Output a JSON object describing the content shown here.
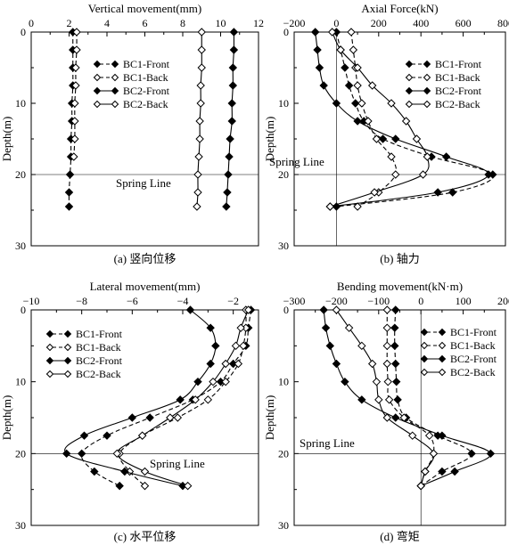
{
  "chart_data": [
    {
      "id": "a",
      "type": "line",
      "orientation": "depth-profile",
      "title": "Vertical movement(mm)",
      "caption": "(a) 竖向位移",
      "xlabel": "Vertical movement(mm)",
      "ylabel": "Depth(m)",
      "xlim": [
        0,
        12
      ],
      "ylim": [
        0,
        30
      ],
      "y_inverted": true,
      "x_axis_position": "top",
      "xticks": [
        "0",
        "2",
        "4",
        "6",
        "8",
        "10",
        "12"
      ],
      "yticks": [
        "0",
        "10",
        "20",
        "30"
      ],
      "legend_position": "upper-right",
      "reference_line": {
        "label": "Spring Line",
        "depth": 20
      },
      "series": [
        {
          "name": "BC1-Front",
          "marker": "filled-diamond",
          "line": "dashed",
          "points": [
            [
              2.2,
              0
            ],
            [
              2.2,
              2.5
            ],
            [
              2.2,
              5
            ],
            [
              2.2,
              7.5
            ],
            [
              2.15,
              10
            ],
            [
              2.15,
              12.5
            ],
            [
              2.1,
              15
            ],
            [
              2.1,
              17.5
            ],
            [
              2.05,
              20
            ],
            [
              2.0,
              22.5
            ],
            [
              2.0,
              24.5
            ]
          ]
        },
        {
          "name": "BC1-Back",
          "marker": "open-diamond",
          "line": "dashed",
          "points": [
            [
              2.4,
              0
            ],
            [
              2.4,
              2.5
            ],
            [
              2.35,
              5
            ],
            [
              2.35,
              7.5
            ],
            [
              2.3,
              10
            ],
            [
              2.3,
              12.5
            ],
            [
              2.3,
              15
            ],
            [
              2.25,
              17.5
            ]
          ]
        },
        {
          "name": "BC2-Front",
          "marker": "filled-diamond",
          "line": "solid",
          "points": [
            [
              10.7,
              0
            ],
            [
              10.7,
              2.5
            ],
            [
              10.65,
              5
            ],
            [
              10.65,
              7.5
            ],
            [
              10.6,
              10
            ],
            [
              10.6,
              12.5
            ],
            [
              10.5,
              15
            ],
            [
              10.45,
              17.5
            ],
            [
              10.4,
              20
            ],
            [
              10.35,
              22.5
            ],
            [
              10.3,
              24.5
            ]
          ]
        },
        {
          "name": "BC2-Back",
          "marker": "open-diamond",
          "line": "solid",
          "points": [
            [
              9.0,
              0
            ],
            [
              9.0,
              2.5
            ],
            [
              9.0,
              5
            ],
            [
              8.95,
              7.5
            ],
            [
              8.95,
              10
            ],
            [
              8.9,
              12.5
            ],
            [
              8.9,
              15
            ],
            [
              8.85,
              17.5
            ],
            [
              8.8,
              20
            ],
            [
              8.8,
              22.5
            ],
            [
              8.75,
              24.5
            ]
          ]
        }
      ]
    },
    {
      "id": "b",
      "type": "line",
      "orientation": "depth-profile",
      "title": "Axial Force(kN)",
      "caption": "(b) 轴力",
      "xlabel": "Axial Force(kN)",
      "ylabel": "Depth(m)",
      "xlim": [
        -200,
        800
      ],
      "ylim": [
        0,
        30
      ],
      "y_inverted": true,
      "x_axis_position": "top",
      "xticks": [
        "−200",
        "0",
        "200",
        "400",
        "600",
        "800"
      ],
      "yticks": [
        "0",
        "10",
        "20",
        "30"
      ],
      "legend_position": "upper-right",
      "reference_line": {
        "label": "Spring Line",
        "depth": 20
      },
      "zero_line": 0,
      "series": [
        {
          "name": "BC1-Front",
          "marker": "filled-diamond",
          "line": "dashed",
          "points": [
            [
              0,
              0
            ],
            [
              20,
              2.5
            ],
            [
              40,
              5
            ],
            [
              60,
              7.5
            ],
            [
              90,
              10
            ],
            [
              130,
              12.5
            ],
            [
              220,
              15
            ],
            [
              450,
              17.5
            ],
            [
              740,
              20
            ],
            [
              550,
              22.5
            ],
            [
              0,
              24.5
            ]
          ]
        },
        {
          "name": "BC1-Back",
          "marker": "open-diamond",
          "line": "dashed",
          "points": [
            [
              70,
              0
            ],
            [
              80,
              2.5
            ],
            [
              90,
              5
            ],
            [
              100,
              7.5
            ],
            [
              120,
              10
            ],
            [
              150,
              12.5
            ],
            [
              190,
              15
            ],
            [
              260,
              17.5
            ],
            [
              280,
              20
            ],
            [
              200,
              22.5
            ],
            [
              100,
              24.5
            ]
          ]
        },
        {
          "name": "BC2-Front",
          "marker": "filled-diamond",
          "line": "solid",
          "points": [
            [
              -100,
              0
            ],
            [
              -90,
              2.5
            ],
            [
              -80,
              5
            ],
            [
              -60,
              7.5
            ],
            [
              0,
              10
            ],
            [
              100,
              12.5
            ],
            [
              280,
              15
            ],
            [
              520,
              17.5
            ],
            [
              720,
              20
            ],
            [
              480,
              22.5
            ],
            [
              -30,
              24.5
            ]
          ]
        },
        {
          "name": "BC2-Back",
          "marker": "open-diamond",
          "line": "solid",
          "points": [
            [
              -20,
              0
            ],
            [
              20,
              2.5
            ],
            [
              100,
              5
            ],
            [
              170,
              7.5
            ],
            [
              260,
              10
            ],
            [
              330,
              12.5
            ],
            [
              380,
              15
            ],
            [
              430,
              17.5
            ],
            [
              410,
              20
            ],
            [
              180,
              22.5
            ],
            [
              -30,
              24.5
            ]
          ]
        }
      ]
    },
    {
      "id": "c",
      "type": "line",
      "orientation": "depth-profile",
      "title": "Lateral movement(mm)",
      "caption": "(c) 水平位移",
      "xlabel": "Lateral movement(mm)",
      "ylabel": "Depth(m)",
      "xlim": [
        -10,
        -1
      ],
      "ylim": [
        0,
        30
      ],
      "y_inverted": true,
      "x_axis_position": "top",
      "xticks": [
        "−10",
        "−8",
        "−6",
        "−4",
        "−2"
      ],
      "yticks": [
        "0",
        "10",
        "20",
        "30"
      ],
      "legend_position": "upper-left",
      "reference_line": {
        "label": "Spring Line",
        "depth": 20
      },
      "series": [
        {
          "name": "BC1-Front",
          "marker": "filled-diamond",
          "line": "dashed",
          "points": [
            [
              -1.3,
              0
            ],
            [
              -1.4,
              2.5
            ],
            [
              -1.5,
              5
            ],
            [
              -2.0,
              7.5
            ],
            [
              -2.5,
              10
            ],
            [
              -3.6,
              12.5
            ],
            [
              -5.3,
              15
            ],
            [
              -7.0,
              17.5
            ],
            [
              -8.0,
              20
            ],
            [
              -7.5,
              22.5
            ],
            [
              -6.5,
              24.5
            ]
          ]
        },
        {
          "name": "BC1-Back",
          "marker": "open-diamond",
          "line": "dashed",
          "points": [
            [
              -1.5,
              0
            ],
            [
              -1.5,
              2.5
            ],
            [
              -1.6,
              5
            ],
            [
              -1.8,
              7.5
            ],
            [
              -2.3,
              10
            ],
            [
              -3.0,
              12.5
            ],
            [
              -4.2,
              15
            ],
            [
              -5.6,
              17.5
            ],
            [
              -6.5,
              20
            ],
            [
              -6.1,
              22.5
            ],
            [
              -5.5,
              24.5
            ]
          ]
        },
        {
          "name": "BC2-Front",
          "marker": "filled-diamond",
          "line": "solid",
          "points": [
            [
              -3.7,
              0
            ],
            [
              -2.9,
              2.5
            ],
            [
              -2.7,
              5
            ],
            [
              -2.9,
              7.5
            ],
            [
              -3.4,
              10
            ],
            [
              -4.1,
              12.5
            ],
            [
              -6.0,
              15
            ],
            [
              -7.9,
              17.5
            ],
            [
              -8.6,
              20
            ],
            [
              -6.3,
              22.5
            ],
            [
              -4.0,
              24.5
            ]
          ]
        },
        {
          "name": "BC2-Back",
          "marker": "open-diamond",
          "line": "solid",
          "points": [
            [
              -1.4,
              0
            ],
            [
              -1.7,
              2.5
            ],
            [
              -1.9,
              5
            ],
            [
              -2.3,
              7.5
            ],
            [
              -2.8,
              10
            ],
            [
              -3.5,
              12.5
            ],
            [
              -4.5,
              15
            ],
            [
              -5.6,
              17.5
            ],
            [
              -6.6,
              20
            ],
            [
              -5.5,
              22.5
            ],
            [
              -3.8,
              24.5
            ]
          ]
        }
      ]
    },
    {
      "id": "d",
      "type": "line",
      "orientation": "depth-profile",
      "title": "Bending movement(kN·m)",
      "caption": "(d) 弯矩",
      "xlabel": "Bending movement(kN·m)",
      "ylabel": "Depth(m)",
      "xlim": [
        -300,
        200
      ],
      "ylim": [
        0,
        30
      ],
      "y_inverted": true,
      "x_axis_position": "top",
      "xticks": [
        "−300",
        "−200",
        "−100",
        "0",
        "100",
        "200"
      ],
      "yticks": [
        "0",
        "10",
        "20",
        "30"
      ],
      "legend_position": "upper-right",
      "reference_line": {
        "label": "Spring Line",
        "depth": 20
      },
      "zero_line": 0,
      "series": [
        {
          "name": "BC1-Front",
          "marker": "filled-diamond",
          "line": "dashed",
          "points": [
            [
              -60,
              0
            ],
            [
              -62,
              2.5
            ],
            [
              -62,
              5
            ],
            [
              -60,
              7.5
            ],
            [
              -58,
              10
            ],
            [
              -55,
              12.5
            ],
            [
              -35,
              15
            ],
            [
              40,
              17.5
            ],
            [
              120,
              20
            ],
            [
              50,
              22.5
            ],
            [
              0,
              24.5
            ]
          ]
        },
        {
          "name": "BC1-Back",
          "marker": "open-diamond",
          "line": "dashed",
          "points": [
            [
              -80,
              0
            ],
            [
              -80,
              2.5
            ],
            [
              -80,
              5
            ],
            [
              -80,
              7.5
            ],
            [
              -78,
              10
            ],
            [
              -75,
              12.5
            ],
            [
              -40,
              15
            ],
            [
              20,
              17.5
            ],
            [
              30,
              20
            ],
            [
              10,
              22.5
            ],
            [
              0,
              24.5
            ]
          ]
        },
        {
          "name": "BC2-Front",
          "marker": "filled-diamond",
          "line": "solid",
          "points": [
            [
              -230,
              0
            ],
            [
              -225,
              2.5
            ],
            [
              -215,
              5
            ],
            [
              -200,
              7.5
            ],
            [
              -180,
              10
            ],
            [
              -140,
              12.5
            ],
            [
              -60,
              15
            ],
            [
              50,
              17.5
            ],
            [
              165,
              20
            ],
            [
              80,
              22.5
            ],
            [
              0,
              24.5
            ]
          ]
        },
        {
          "name": "BC2-Back",
          "marker": "open-diamond",
          "line": "solid",
          "points": [
            [
              -200,
              0
            ],
            [
              -170,
              2.5
            ],
            [
              -140,
              5
            ],
            [
              -115,
              7.5
            ],
            [
              -105,
              10
            ],
            [
              -100,
              12.5
            ],
            [
              -80,
              15
            ],
            [
              -20,
              17.5
            ],
            [
              30,
              20
            ],
            [
              10,
              22.5
            ],
            [
              0,
              24.5
            ]
          ]
        }
      ]
    }
  ]
}
